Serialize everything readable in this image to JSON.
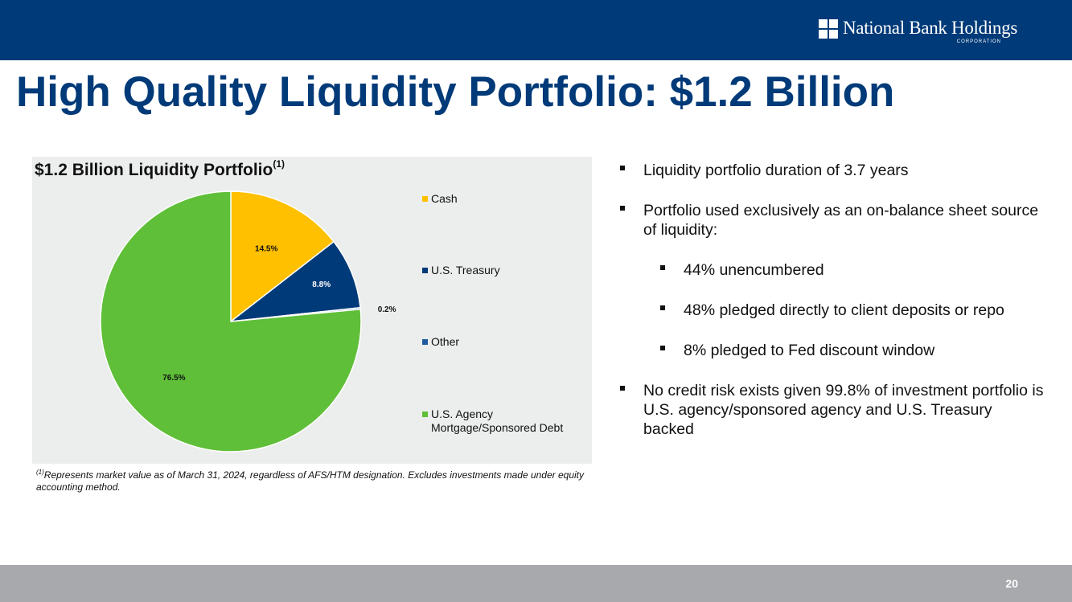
{
  "header": {
    "logo_name": "National Bank Holdings",
    "logo_sub": "CORPORATION",
    "logo_icon": "four-square-logo-icon"
  },
  "page_title": "High Quality Liquidity Portfolio: $1.2 Billion",
  "chart_data": {
    "type": "pie",
    "title": "$1.2 Billion Liquidity Portfolio",
    "title_superscript": "(1)",
    "categories": [
      "Cash",
      "U.S. Treasury",
      "Other",
      "U.S. Agency\nMortgage/Sponsored Debt"
    ],
    "values": [
      14.5,
      8.8,
      0.2,
      76.5
    ],
    "labels": [
      "14.5%",
      "8.8%",
      "0.2%",
      "76.5%"
    ],
    "colors": [
      "#ffc000",
      "#003a78",
      "#1f5ca0",
      "#5fbf38"
    ],
    "start": "12 o'clock, clockwise",
    "legend_position": "right",
    "background": "#eceeed"
  },
  "footnote": {
    "superscript": "(1)",
    "text": "Represents market value as of March 31, 2024, regardless of AFS/HTM designation. Excludes investments made under equity accounting method."
  },
  "bullets": [
    {
      "level": 1,
      "text": "Liquidity portfolio duration of 3.7 years"
    },
    {
      "level": 1,
      "text": "Portfolio used exclusively as an on-balance sheet source of liquidity:"
    },
    {
      "level": 2,
      "text": "44% unencumbered"
    },
    {
      "level": 2,
      "text": "48% pledged directly to client deposits or repo"
    },
    {
      "level": 2,
      "text": "8% pledged to Fed discount window"
    },
    {
      "level": 1,
      "text": "No credit risk exists given 99.8% of investment portfolio is U.S. agency/sponsored agency and U.S. Treasury backed"
    }
  ],
  "page_number": "20",
  "colors": {
    "brand_navy": "#003a78",
    "footer_gray": "#a7a9ac"
  }
}
